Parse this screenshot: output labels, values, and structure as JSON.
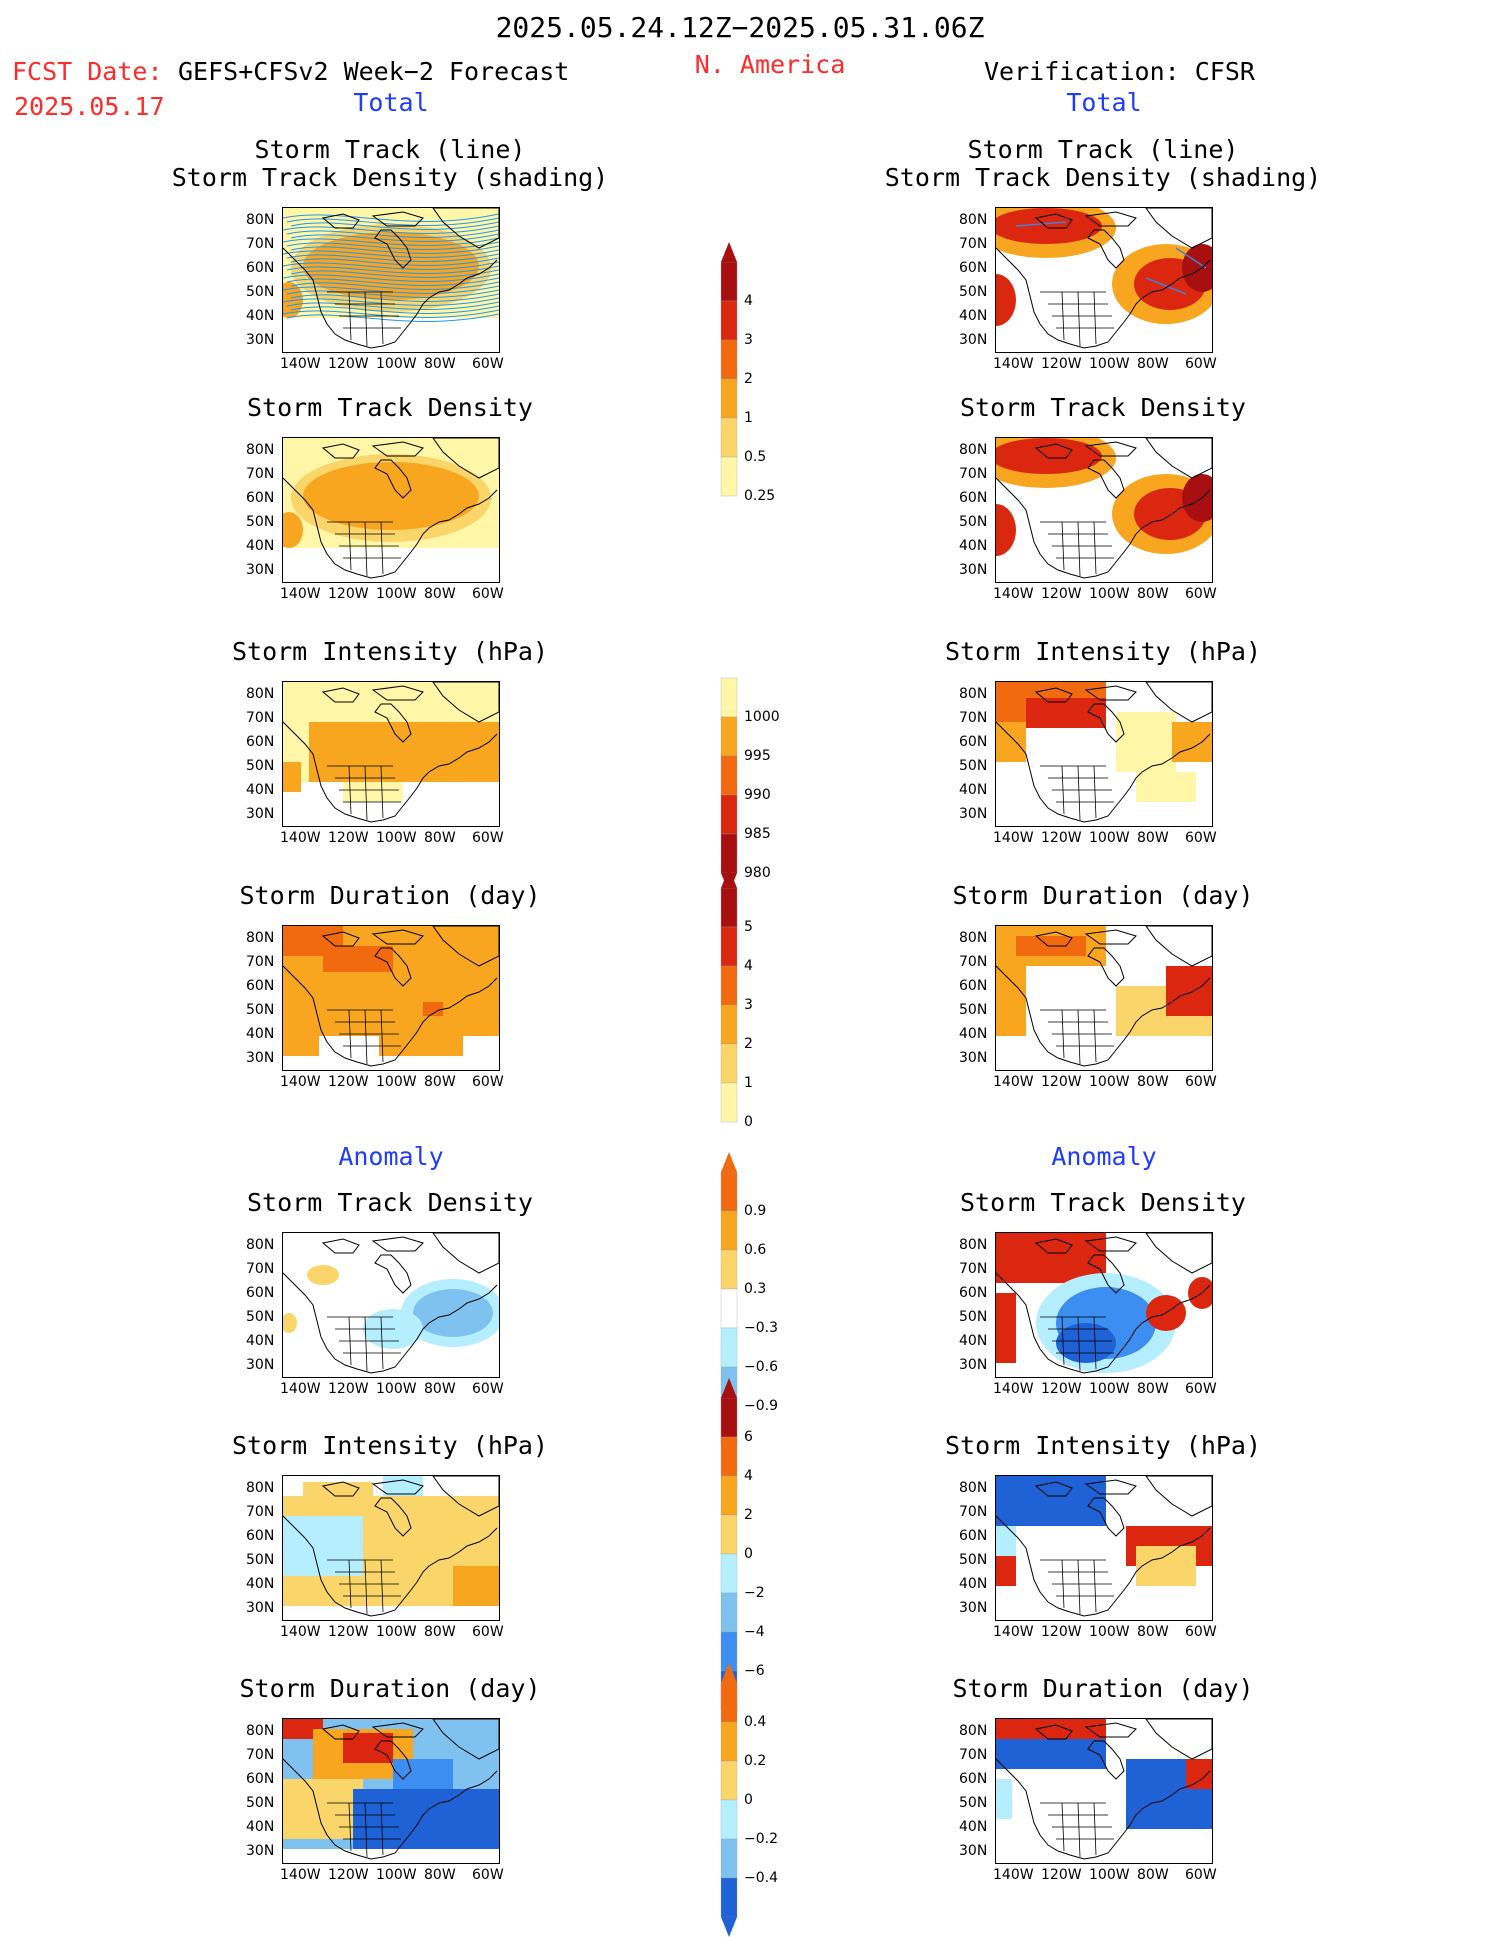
{
  "header": {
    "date_range": "2025.05.24.12Z−2025.05.31.06Z",
    "region": "N. America",
    "fcst_label": "FCST Date:",
    "fcst_model": "GEFS+CFSv2 Week−2 Forecast",
    "fcst_date": "2025.05.17",
    "verification": "Verification: CFSR"
  },
  "sections": {
    "total": "Total",
    "anomaly": "Anomaly"
  },
  "panel_titles": {
    "track_line": "Storm Track (line)",
    "track_density_shading": "Storm Track Density (shading)",
    "track_density": "Storm Track Density",
    "intensity": "Storm Intensity (hPa)",
    "duration": "Storm Duration (day)"
  },
  "axes": {
    "lat_ticks": [
      "80N",
      "70N",
      "60N",
      "50N",
      "40N",
      "30N"
    ],
    "lon_ticks": [
      "140W",
      "120W",
      "100W",
      "80W",
      "60W"
    ]
  },
  "colorbars": {
    "density": [
      "4",
      "3",
      "2",
      "1",
      "0.5",
      "0.25"
    ],
    "intensity": [
      "1000",
      "995",
      "990",
      "985",
      "980"
    ],
    "duration": [
      "5",
      "4",
      "3",
      "2",
      "1",
      "0"
    ],
    "density_anom": [
      "0.9",
      "0.6",
      "0.3",
      "−0.3",
      "−0.6",
      "−0.9"
    ],
    "intensity_anom": [
      "6",
      "4",
      "2",
      "0",
      "−2",
      "−4",
      "−6"
    ],
    "duration_anom": [
      "0.4",
      "0.2",
      "0",
      "−0.2",
      "−0.4"
    ]
  },
  "colors": {
    "warm_1": "#fff6a8",
    "warm_2": "#fad66a",
    "warm_3": "#f8a520",
    "warm_4": "#f26a10",
    "warm_5": "#dc2710",
    "warm_6": "#a80f10",
    "cool_1": "#b5efff",
    "cool_2": "#7fc2f0",
    "cool_3": "#3c8ef0",
    "cool_4": "#1e62d6",
    "track_line": "#2196f3",
    "map_outline": "#000000"
  }
}
